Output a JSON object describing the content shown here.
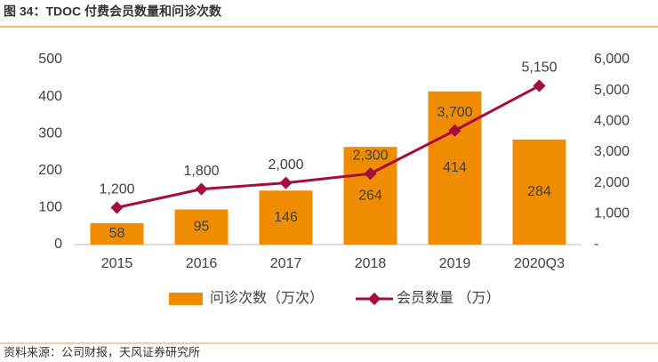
{
  "chart_data": {
    "type": "bar-line",
    "title": "图 34：TDOC 付费会员数量和问诊次数",
    "source": "资料来源：公司财报，天风证券研究所",
    "categories": [
      "2015",
      "2016",
      "2017",
      "2018",
      "2019",
      "2020Q3"
    ],
    "series": [
      {
        "name": "问诊次数（万次）",
        "type": "bar",
        "color": "#f08c00",
        "values": [
          58,
          95,
          146,
          264,
          414,
          284
        ]
      },
      {
        "name": "会员数量 （万）",
        "type": "line",
        "axis": "y2",
        "color": "#a50d3d",
        "values": [
          1200,
          1800,
          2000,
          2300,
          3700,
          5150
        ],
        "value_labels": [
          "1,200",
          "1,800",
          "2,000",
          "2,300",
          "3,700",
          "5,150"
        ]
      }
    ],
    "ylim": [
      0,
      500
    ],
    "yticks": [
      0,
      100,
      200,
      300,
      400,
      500
    ],
    "y2lim": [
      0,
      6000
    ],
    "y2ticks": [
      {
        "value": 0,
        "label": "-"
      },
      {
        "value": 1000,
        "label": "1,000"
      },
      {
        "value": 2000,
        "label": "2,000"
      },
      {
        "value": 3000,
        "label": "3,000"
      },
      {
        "value": 4000,
        "label": "4,000"
      },
      {
        "value": 5000,
        "label": "5,000"
      },
      {
        "value": 6000,
        "label": "6,000"
      }
    ],
    "legend": "bottom"
  }
}
